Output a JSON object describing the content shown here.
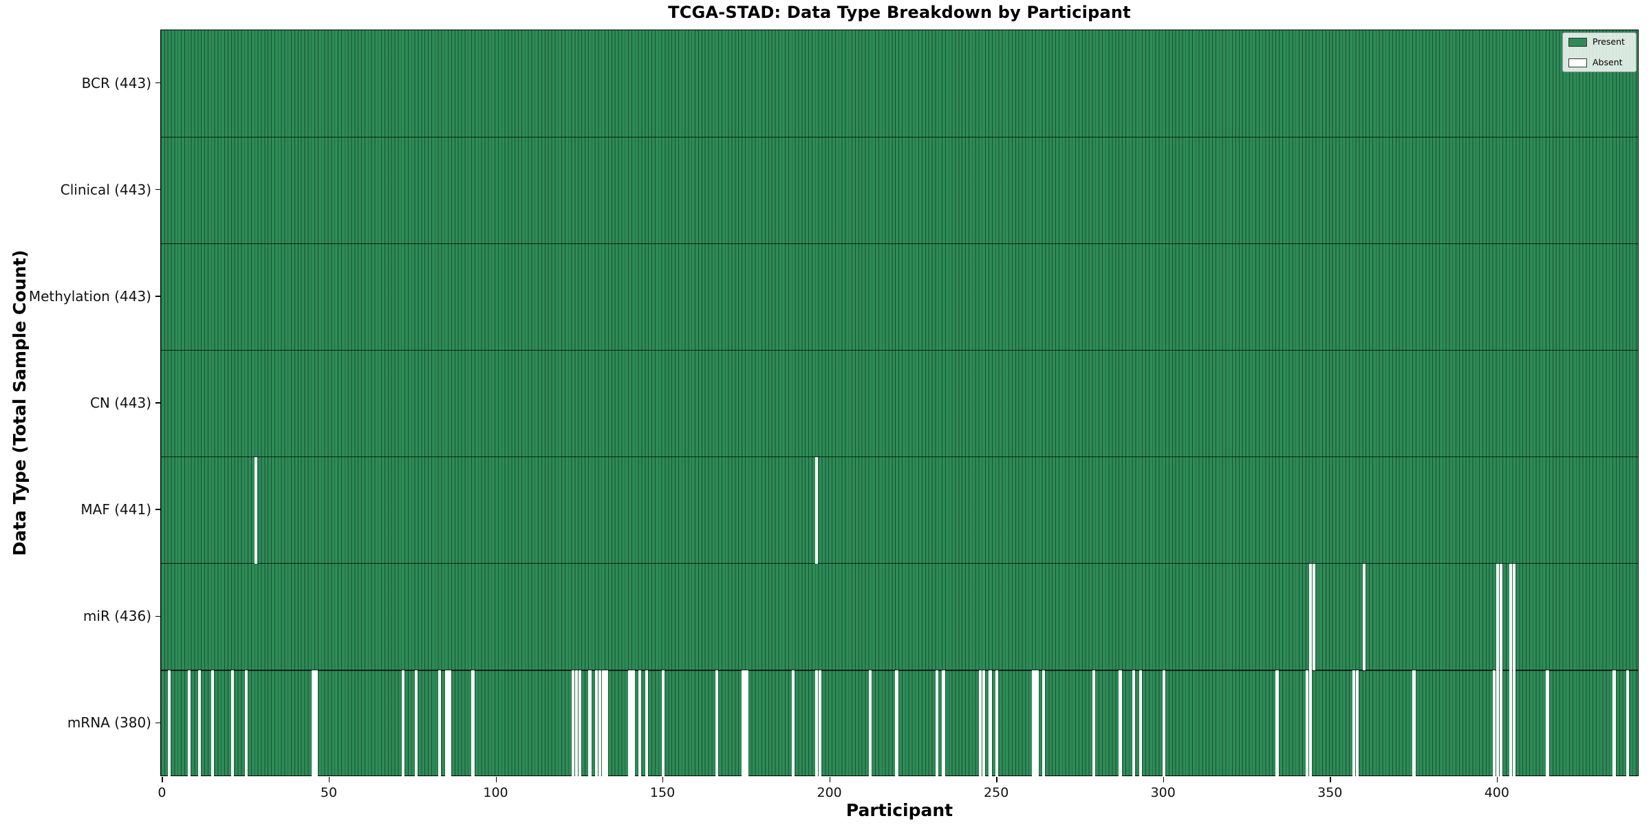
{
  "title": "TCGA-STAD: Data Type Breakdown by Participant",
  "xlabel": "Participant",
  "ylabel": "Data Type (Total Sample Count)",
  "colors": {
    "present": "#2e8b57",
    "absent": "#ffffff",
    "bar_edge": "rgba(5,35,18,0.55)",
    "row_separator": "rgba(0,0,0,0.75)",
    "frame": "#000000"
  },
  "legend": {
    "entries": [
      {
        "label": "Present",
        "color": "#2e8b57"
      },
      {
        "label": "Absent",
        "color": "#ffffff"
      }
    ]
  },
  "chart_data": {
    "type": "heatmap",
    "title": "TCGA-STAD: Data Type Breakdown by Participant",
    "xlabel": "Participant",
    "ylabel": "Data Type (Total Sample Count)",
    "n_participants": 443,
    "x_ticks": [
      0,
      50,
      100,
      150,
      200,
      250,
      300,
      350,
      400
    ],
    "legend_position": "upper right",
    "grid": false,
    "rows": [
      {
        "label": "BCR (443)",
        "data_type": "BCR",
        "present_count": 443,
        "absent_participants": []
      },
      {
        "label": "Clinical (443)",
        "data_type": "Clinical",
        "present_count": 443,
        "absent_participants": []
      },
      {
        "label": "Methylation (443)",
        "data_type": "Methylation",
        "present_count": 443,
        "absent_participants": []
      },
      {
        "label": "CN (443)",
        "data_type": "CN",
        "present_count": 443,
        "absent_participants": []
      },
      {
        "label": "MAF (441)",
        "data_type": "MAF",
        "present_count": 441,
        "absent_participants": [
          28,
          196
        ]
      },
      {
        "label": "miR (436)",
        "data_type": "miR",
        "present_count": 436,
        "absent_participants": [
          344,
          345,
          360,
          400,
          401,
          404,
          405
        ]
      },
      {
        "label": "mRNA (380)",
        "data_type": "mRNA",
        "present_count": 380,
        "absent_participants": [
          2,
          8,
          11,
          15,
          21,
          25,
          45,
          46,
          72,
          76,
          83,
          85,
          86,
          93,
          123,
          124,
          125,
          128,
          130,
          131,
          132,
          133,
          140,
          141,
          143,
          145,
          150,
          166,
          174,
          175,
          189,
          196,
          197,
          212,
          220,
          232,
          234,
          245,
          246,
          248,
          250,
          261,
          262,
          264,
          279,
          287,
          291,
          293,
          300,
          334,
          343,
          344,
          357,
          358,
          375,
          399,
          400,
          401,
          404,
          405,
          415,
          435,
          439
        ]
      }
    ]
  }
}
